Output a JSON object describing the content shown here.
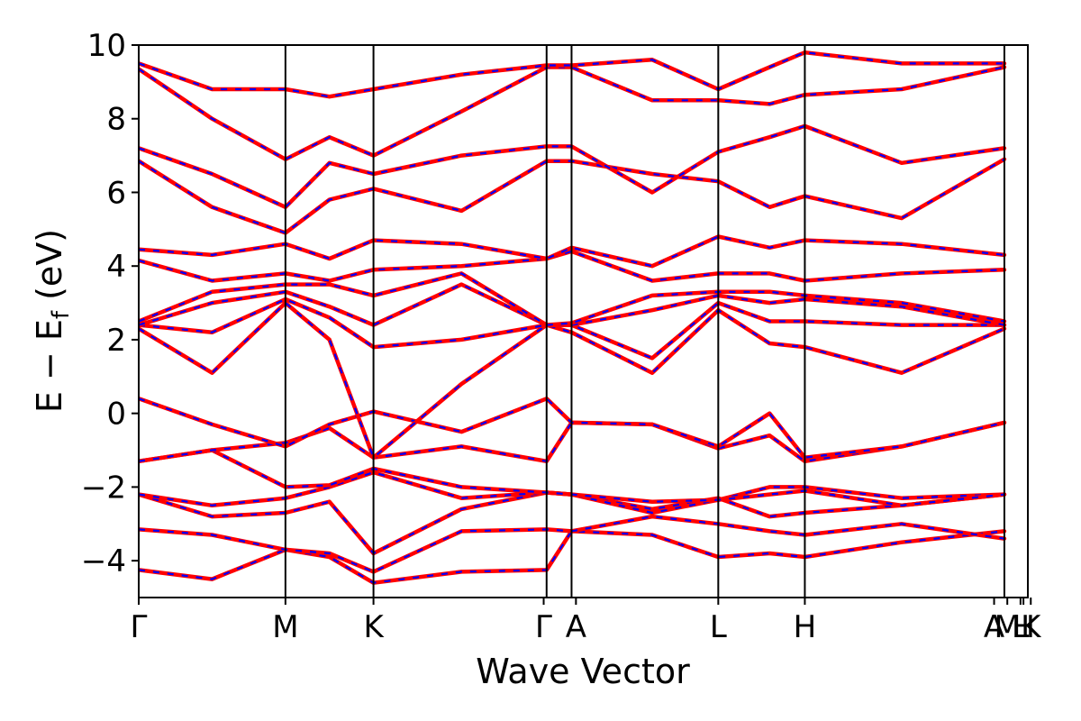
{
  "chart_data": {
    "type": "line",
    "xlabel": "Wave Vector",
    "ylabel": "E − E_f (eV)",
    "ylabel_parts": {
      "main": "E − E",
      "sub": "f",
      "unit": " (eV)"
    },
    "ylim": [
      -5,
      10
    ],
    "yticks": [
      -4,
      -2,
      0,
      2,
      4,
      6,
      8,
      10
    ],
    "ytick_labels": [
      "−4",
      "−2",
      "0",
      "2",
      "4",
      "6",
      "8",
      "10"
    ],
    "xlim": [
      0,
      6.06
    ],
    "kpoint_positions": [
      0,
      1.0,
      1.6,
      2.78,
      2.95,
      3.95,
      4.54,
      5.9,
      6.07,
      6.06
    ],
    "kpoint_labels": [
      "Γ",
      "M",
      "K",
      "Γ",
      "A",
      "L",
      "H",
      "A",
      "M",
      "L",
      "H",
      "K"
    ],
    "label_positions": [
      0,
      1.0,
      1.6,
      2.76,
      2.98,
      3.95,
      4.54,
      5.83,
      5.92,
      6.01,
      6.03,
      6.08
    ],
    "grid": false,
    "legend": "none",
    "series_colors": {
      "spin_a": "#ff0000",
      "spin_b": "#0000ff"
    },
    "series": [
      {
        "name": "",
        "x": [
          0,
          0.5,
          1.0,
          1.3,
          1.6,
          2.2,
          2.78,
          2.95,
          3.5,
          3.95,
          4.3,
          4.54,
          5.2,
          5.9
        ],
        "y": [
          -4.25,
          -4.5,
          -3.7,
          -3.9,
          -4.6,
          -4.3,
          -4.25,
          -3.2,
          -3.3,
          -3.9,
          -3.8,
          -3.9,
          -3.5,
          -3.2
        ]
      },
      {
        "name": "",
        "x": [
          0,
          0.5,
          1.0,
          1.3,
          1.6,
          2.2,
          2.78,
          2.95,
          3.5,
          3.95,
          4.3,
          4.54,
          5.2,
          5.9
        ],
        "y": [
          -3.15,
          -3.3,
          -3.7,
          -3.8,
          -4.3,
          -3.2,
          -3.15,
          -3.2,
          -2.8,
          -3.0,
          -3.2,
          -3.3,
          -3.0,
          -3.4
        ]
      },
      {
        "name": "",
        "x": [
          0,
          0.5,
          1.0,
          1.3,
          1.6,
          2.2,
          2.78,
          2.95,
          3.5,
          3.95,
          4.3,
          4.54,
          5.2,
          5.9
        ],
        "y": [
          -2.2,
          -2.8,
          -2.7,
          -2.4,
          -3.8,
          -2.6,
          -2.15,
          -2.2,
          -2.6,
          -2.3,
          -2.8,
          -2.7,
          -2.5,
          -2.2
        ]
      },
      {
        "name": "",
        "x": [
          0,
          0.5,
          1.0,
          1.3,
          1.6,
          2.2,
          2.78,
          2.95,
          3.5,
          3.95,
          4.3,
          4.54,
          5.2,
          5.9
        ],
        "y": [
          -2.2,
          -2.5,
          -2.3,
          -2.0,
          -1.6,
          -2.3,
          -2.15,
          -2.2,
          -2.7,
          -2.35,
          -2.0,
          -2.0,
          -2.3,
          -2.2
        ]
      },
      {
        "name": "",
        "x": [
          0,
          0.5,
          1.0,
          1.3,
          1.6,
          2.2,
          2.78,
          2.95,
          3.5,
          3.95,
          4.3,
          4.54,
          5.2,
          5.9
        ],
        "y": [
          -1.3,
          -1.0,
          -2.0,
          -1.95,
          -1.5,
          -2.0,
          -2.15,
          -2.2,
          -2.4,
          -2.35,
          -2.2,
          -2.1,
          -2.5,
          -2.2
        ]
      },
      {
        "name": "",
        "x": [
          0,
          0.5,
          1.0,
          1.3,
          1.6,
          2.2,
          2.78,
          2.95,
          3.5,
          3.95,
          4.3,
          4.54,
          5.2,
          5.9
        ],
        "y": [
          -1.3,
          -1.0,
          -0.8,
          -0.4,
          -1.2,
          -0.9,
          -1.3,
          -0.25,
          -0.3,
          -0.95,
          -0.6,
          -1.3,
          -0.9,
          -0.25
        ]
      },
      {
        "name": "",
        "x": [
          0,
          0.5,
          1.0,
          1.3,
          1.6,
          2.2,
          2.78,
          2.95,
          3.5,
          3.95,
          4.3,
          4.54,
          5.2,
          5.9
        ],
        "y": [
          0.4,
          -0.3,
          -0.9,
          -0.3,
          0.05,
          -0.5,
          0.4,
          -0.25,
          -0.3,
          -0.9,
          0.0,
          -1.2,
          -0.9,
          -0.25
        ]
      },
      {
        "name": "",
        "x": [
          0,
          0.5,
          1.0,
          1.3,
          1.6,
          2.2,
          2.78,
          2.95,
          3.5,
          3.95,
          4.3,
          4.54,
          5.2,
          5.9
        ],
        "y": [
          2.3,
          1.1,
          3.0,
          2.0,
          -1.2,
          0.8,
          2.4,
          2.2,
          1.1,
          2.8,
          1.9,
          1.8,
          1.1,
          2.3
        ]
      },
      {
        "name": "",
        "x": [
          0,
          0.5,
          1.0,
          1.3,
          1.6,
          2.2,
          2.78,
          2.95,
          3.5,
          3.95,
          4.3,
          4.54,
          5.2,
          5.9
        ],
        "y": [
          2.4,
          2.2,
          3.1,
          2.6,
          1.8,
          2.0,
          2.4,
          2.4,
          1.5,
          3.0,
          2.5,
          2.5,
          2.4,
          2.4
        ]
      },
      {
        "name": "",
        "x": [
          0,
          0.5,
          1.0,
          1.3,
          1.6,
          2.2,
          2.78,
          2.95,
          3.5,
          3.95,
          4.3,
          4.54,
          5.2,
          5.9
        ],
        "y": [
          2.4,
          3.0,
          3.3,
          2.9,
          2.4,
          3.5,
          2.4,
          2.4,
          2.8,
          3.2,
          3.0,
          3.1,
          2.9,
          2.4
        ]
      },
      {
        "name": "",
        "x": [
          0,
          0.5,
          1.0,
          1.3,
          1.6,
          2.2,
          2.78,
          2.95,
          3.5,
          3.95,
          4.3,
          4.54,
          5.2,
          5.9
        ],
        "y": [
          2.5,
          3.3,
          3.5,
          3.5,
          3.2,
          3.8,
          2.4,
          2.45,
          3.2,
          3.3,
          3.3,
          3.2,
          3.0,
          2.5
        ]
      },
      {
        "name": "",
        "x": [
          0,
          0.5,
          1.0,
          1.3,
          1.6,
          2.2,
          2.78,
          2.95,
          3.5,
          3.95,
          4.3,
          4.54,
          5.2,
          5.9
        ],
        "y": [
          4.15,
          3.6,
          3.8,
          3.6,
          3.9,
          4.0,
          4.2,
          4.4,
          3.6,
          3.8,
          3.8,
          3.6,
          3.8,
          3.9
        ]
      },
      {
        "name": "",
        "x": [
          0,
          0.5,
          1.0,
          1.3,
          1.6,
          2.2,
          2.78,
          2.95,
          3.5,
          3.95,
          4.3,
          4.54,
          5.2,
          5.9
        ],
        "y": [
          4.45,
          4.3,
          4.6,
          4.2,
          4.7,
          4.6,
          4.2,
          4.5,
          4.0,
          4.8,
          4.5,
          4.7,
          4.6,
          4.3
        ]
      },
      {
        "name": "",
        "x": [
          0,
          0.5,
          1.0,
          1.3,
          1.6,
          2.2,
          2.78,
          2.95,
          3.5,
          3.95,
          4.3,
          4.54,
          5.2,
          5.9
        ],
        "y": [
          6.85,
          5.6,
          4.9,
          5.8,
          6.1,
          5.5,
          6.85,
          6.85,
          6.5,
          6.3,
          5.6,
          5.9,
          5.3,
          6.9
        ]
      },
      {
        "name": "",
        "x": [
          0,
          0.5,
          1.0,
          1.3,
          1.6,
          2.2,
          2.78,
          2.95,
          3.5,
          3.95,
          4.3,
          4.54,
          5.2,
          5.9
        ],
        "y": [
          7.2,
          6.5,
          5.6,
          6.8,
          6.5,
          7.0,
          7.25,
          7.25,
          6.0,
          7.1,
          7.5,
          7.8,
          6.8,
          7.2
        ]
      },
      {
        "name": "",
        "x": [
          0,
          0.5,
          1.0,
          1.3,
          1.6,
          2.2,
          2.78,
          2.95,
          3.5,
          3.95,
          4.3,
          4.54,
          5.2,
          5.9
        ],
        "y": [
          9.35,
          8.0,
          6.9,
          7.5,
          7.0,
          8.2,
          9.4,
          9.4,
          8.5,
          8.5,
          8.4,
          8.65,
          8.8,
          9.4
        ]
      },
      {
        "name": "",
        "x": [
          0,
          0.5,
          1.0,
          1.3,
          1.6,
          2.2,
          2.78,
          2.95,
          3.5,
          3.95,
          4.3,
          4.54,
          5.2,
          5.9
        ],
        "y": [
          9.5,
          8.8,
          8.8,
          8.6,
          8.8,
          9.2,
          9.45,
          9.45,
          9.6,
          8.8,
          9.4,
          9.8,
          9.5,
          9.5
        ]
      }
    ]
  }
}
